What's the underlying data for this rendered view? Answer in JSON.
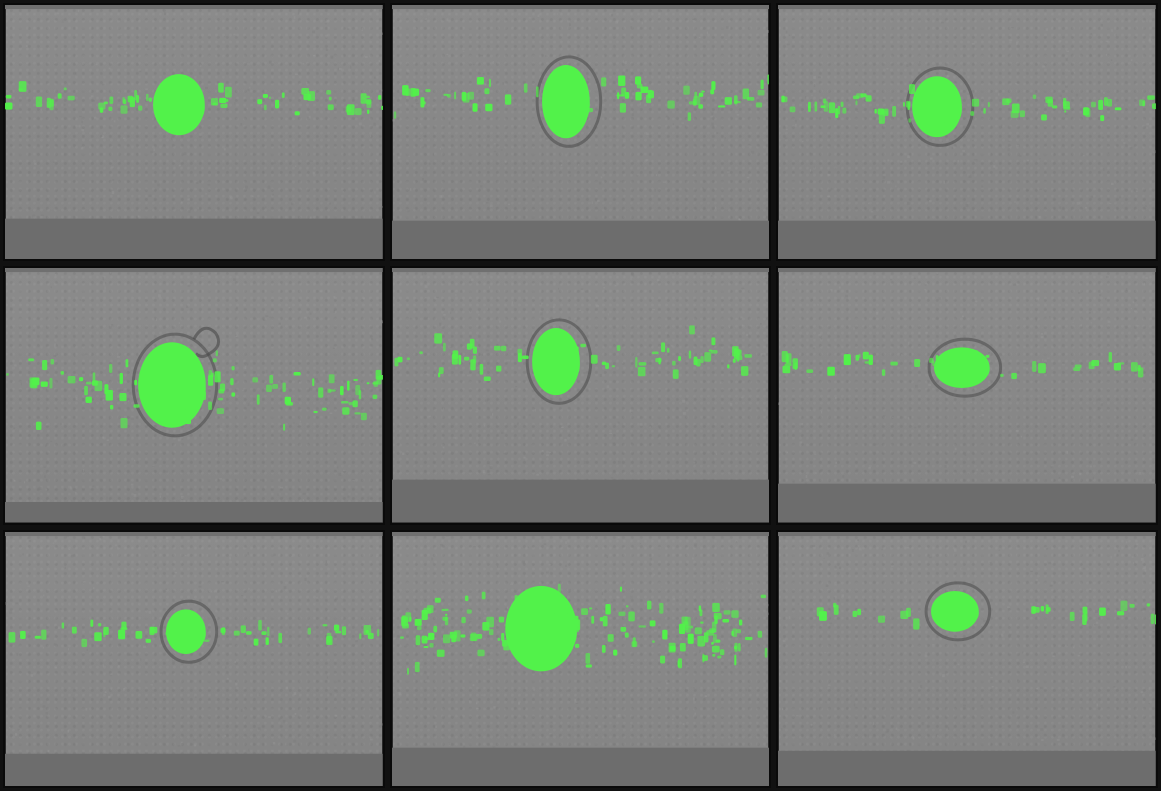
{
  "panels": [
    {
      "id": 1,
      "row": 1,
      "col": 1
    },
    {
      "id": 2,
      "row": 1,
      "col": 2
    },
    {
      "id": 3,
      "row": 1,
      "col": 3
    },
    {
      "id": 4,
      "row": 2,
      "col": 1
    },
    {
      "id": 5,
      "row": 2,
      "col": 2
    },
    {
      "id": 6,
      "row": 2,
      "col": 3
    },
    {
      "id": 7,
      "row": 3,
      "col": 1
    },
    {
      "id": 8,
      "row": 3,
      "col": 2
    },
    {
      "id": 9,
      "row": 3,
      "col": 3
    }
  ],
  "colors": {
    "fluorescence": "#52f24a",
    "background": "#888888",
    "strip": "#6d6d6d",
    "border": "#0a0a0a"
  }
}
